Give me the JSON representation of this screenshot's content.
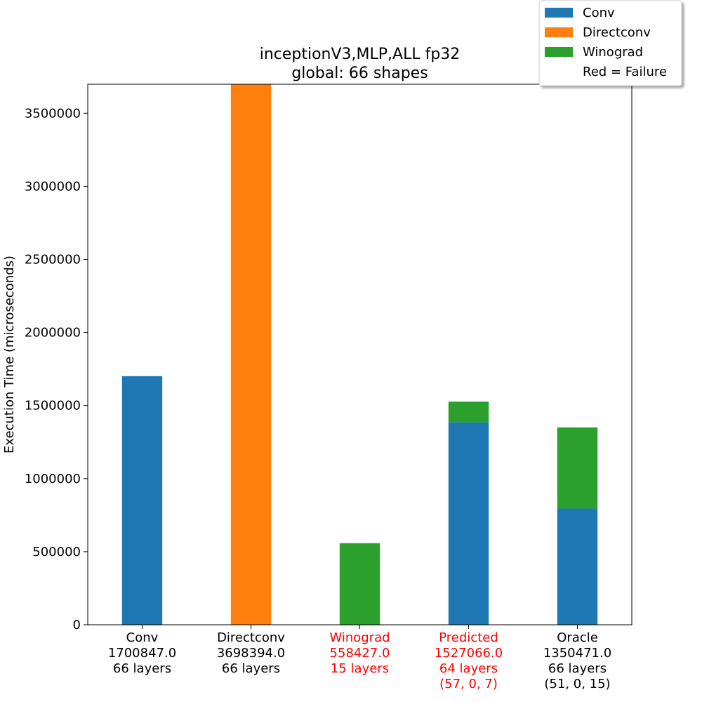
{
  "chart_data": {
    "type": "bar",
    "stacked": true,
    "title": [
      "inceptionV3,MLP,ALL fp32",
      "global: 66 shapes"
    ],
    "xlabel": "",
    "ylabel": "Execution Time (microseconds)",
    "ylim": [
      0,
      3698394
    ],
    "yticks": [
      0,
      500000,
      1000000,
      1500000,
      2000000,
      2500000,
      3000000,
      3500000
    ],
    "colors": {
      "Conv": "#1f77b4",
      "Directconv": "#ff7f0e",
      "Winograd": "#2ca02c",
      "failure": "#ff0000"
    },
    "categories": [
      {
        "name": "Conv",
        "label_lines": [
          "Conv",
          "1700847.0",
          "66 layers"
        ],
        "failure": false
      },
      {
        "name": "Directconv",
        "label_lines": [
          "Directconv",
          "3698394.0",
          "66 layers"
        ],
        "failure": false
      },
      {
        "name": "Winograd",
        "label_lines": [
          "Winograd",
          "558427.0",
          "15 layers"
        ],
        "failure": true
      },
      {
        "name": "Predicted",
        "label_lines": [
          "Predicted",
          "1527066.0",
          "64 layers",
          "(57, 0, 7)"
        ],
        "failure": true
      },
      {
        "name": "Oracle",
        "label_lines": [
          "Oracle",
          "1350471.0",
          "66 layers",
          "(51, 0, 15)"
        ],
        "failure": false
      }
    ],
    "series": [
      {
        "name": "Conv",
        "values": [
          1700847,
          0,
          0,
          1385000,
          795000
        ]
      },
      {
        "name": "Directconv",
        "values": [
          0,
          3698394,
          0,
          0,
          0
        ]
      },
      {
        "name": "Winograd",
        "values": [
          0,
          0,
          558427,
          142066,
          555471
        ]
      }
    ],
    "legend": {
      "position": "top-right",
      "entries": [
        {
          "label": "Conv",
          "series": "Conv"
        },
        {
          "label": "Directconv",
          "series": "Directconv"
        },
        {
          "label": "Winograd",
          "series": "Winograd"
        },
        {
          "label": "Red = Failure",
          "series": null
        }
      ]
    }
  }
}
